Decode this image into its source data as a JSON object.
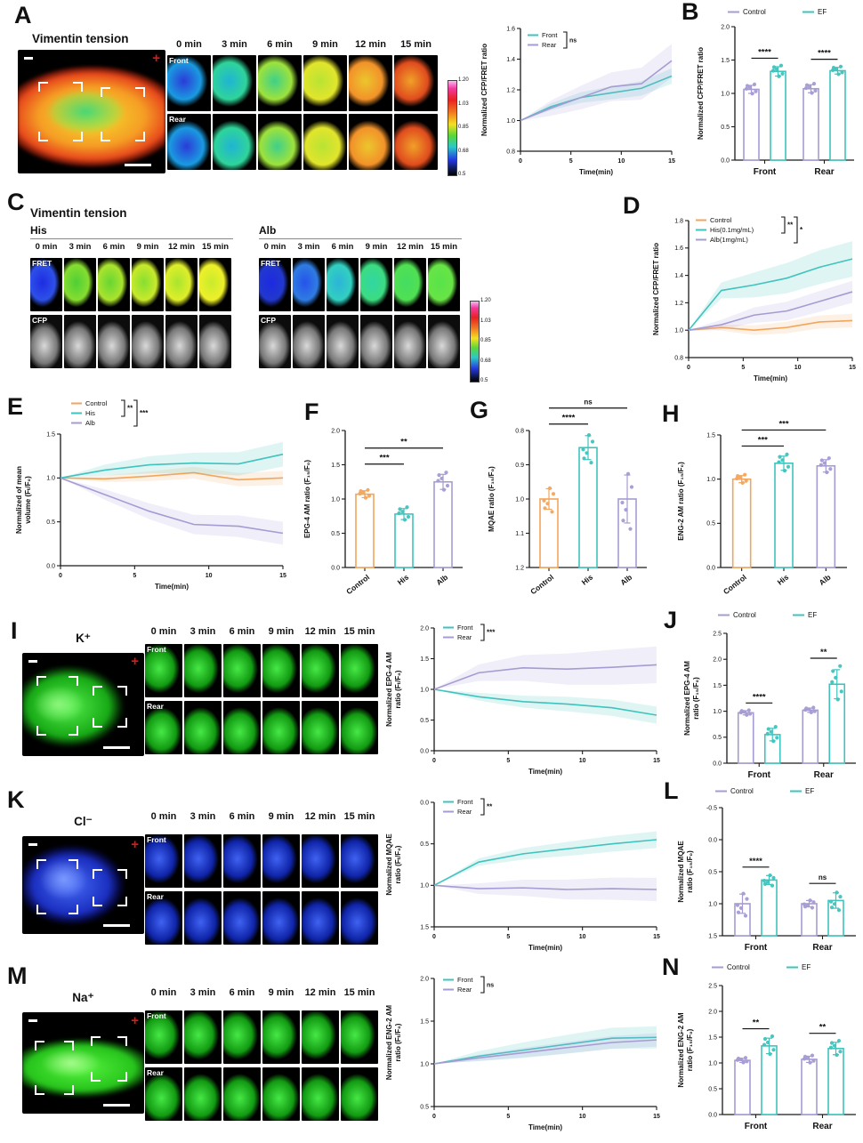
{
  "colors": {
    "teal": "#3fc3bd",
    "purple": "#a69bd3",
    "orange": "#f2a55c",
    "sig": "#111111"
  },
  "time_labels": [
    "0 min",
    "3 min",
    "6 min",
    "9 min",
    "12 min",
    "15 min"
  ],
  "colorbar_ticks": [
    "1.20",
    "1.03",
    "0.85",
    "0.68",
    "0.5"
  ],
  "panels": {
    "A": {
      "letter": "A",
      "title": "Vimentin tension",
      "row_labels": [
        "Front",
        "Rear"
      ]
    },
    "B": {
      "letter": "B"
    },
    "C": {
      "letter": "C",
      "title": "Vimentin tension",
      "sub_left": "His",
      "sub_right": "Alb",
      "row_labels": [
        "FRET",
        "CFP"
      ]
    },
    "D": {
      "letter": "D"
    },
    "E": {
      "letter": "E"
    },
    "F": {
      "letter": "F"
    },
    "G": {
      "letter": "G"
    },
    "H": {
      "letter": "H"
    },
    "I": {
      "letter": "I",
      "title": "K⁺",
      "row_labels": [
        "Front",
        "Rear"
      ]
    },
    "J": {
      "letter": "J"
    },
    "K": {
      "letter": "K",
      "title": "Cl⁻",
      "row_labels": [
        "Front",
        "Rear"
      ]
    },
    "L": {
      "letter": "L"
    },
    "M": {
      "letter": "M",
      "title": "Na⁺",
      "row_labels": [
        "Front",
        "Rear"
      ]
    },
    "N": {
      "letter": "N"
    }
  },
  "chart_data": {
    "A": {
      "type": "line",
      "x": [
        0,
        3,
        6,
        9,
        12,
        15
      ],
      "xticks": [
        0,
        5,
        10,
        15
      ],
      "xlabel": "Time(min)",
      "ylabel": "Normalized CFP/FRET ratio",
      "ylim": [
        0.8,
        1.6
      ],
      "yticks": [
        0.8,
        1.0,
        1.2,
        1.4,
        1.6
      ],
      "series": [
        {
          "name": "Front",
          "color": "teal",
          "values": [
            1.0,
            1.09,
            1.15,
            1.18,
            1.21,
            1.29
          ],
          "band": 0.05
        },
        {
          "name": "Rear",
          "color": "purple",
          "values": [
            1.0,
            1.08,
            1.15,
            1.22,
            1.24,
            1.39
          ],
          "band": 0.11
        }
      ],
      "sig": [
        {
          "rows": [
            0,
            1
          ],
          "label": "ns"
        }
      ]
    },
    "B": {
      "type": "bar",
      "groups": [
        "Front",
        "Rear"
      ],
      "ylabel": "Normalized CFP/FRET ratio",
      "ylim": [
        0,
        2.0
      ],
      "yticks": [
        0,
        0.5,
        1.0,
        1.5,
        2.0
      ],
      "legend": true,
      "series": [
        {
          "name": "Control",
          "color": "purple",
          "values": [
            1.06,
            1.07
          ],
          "errors": [
            0.06,
            0.06
          ]
        },
        {
          "name": "EF",
          "color": "teal",
          "values": [
            1.33,
            1.34
          ],
          "errors": [
            0.07,
            0.05
          ]
        }
      ],
      "sig": [
        {
          "group": 0,
          "label": "****"
        },
        {
          "group": 1,
          "label": "****"
        }
      ]
    },
    "D": {
      "type": "line",
      "x": [
        0,
        3,
        6,
        9,
        12,
        15
      ],
      "xticks": [
        0,
        5,
        10,
        15
      ],
      "xlabel": "Time(min)",
      "ylabel": "Normalized CFP/FRET ratio",
      "ylim": [
        0.8,
        1.8
      ],
      "yticks": [
        0.8,
        1.0,
        1.2,
        1.4,
        1.6,
        1.8
      ],
      "series": [
        {
          "name": "Control",
          "color": "orange",
          "values": [
            1.0,
            1.02,
            1.0,
            1.02,
            1.06,
            1.07
          ],
          "band": 0.05
        },
        {
          "name": "His(0.1mg/mL)",
          "color": "teal",
          "values": [
            1.0,
            1.29,
            1.33,
            1.38,
            1.46,
            1.52
          ],
          "band": 0.13
        },
        {
          "name": "Alb(1mg/mL)",
          "color": "purple",
          "values": [
            1.0,
            1.04,
            1.11,
            1.14,
            1.21,
            1.28
          ],
          "band": 0.08
        }
      ],
      "sig": [
        {
          "rows": [
            0,
            1
          ],
          "label": "**"
        },
        {
          "rows": [
            0,
            2
          ],
          "label": "*"
        }
      ]
    },
    "E": {
      "type": "line",
      "x": [
        0,
        3,
        6,
        9,
        12,
        15
      ],
      "xticks": [
        0,
        5,
        10,
        15
      ],
      "xlabel": "Time(min)",
      "ylabel": "Normalized of mean\nvolume (Fₜ/F₀)",
      "ylim": [
        0,
        1.5
      ],
      "yticks": [
        0,
        0.5,
        1.0,
        1.5
      ],
      "series": [
        {
          "name": "Control",
          "color": "orange",
          "values": [
            1.0,
            0.99,
            1.02,
            1.06,
            0.98,
            1.0
          ],
          "band": 0.08
        },
        {
          "name": "His",
          "color": "teal",
          "values": [
            1.0,
            1.09,
            1.15,
            1.17,
            1.16,
            1.27
          ],
          "band": 0.14
        },
        {
          "name": "Alb",
          "color": "purple",
          "values": [
            1.0,
            0.81,
            0.62,
            0.47,
            0.45,
            0.37
          ],
          "band": 0.13
        }
      ],
      "sig": [
        {
          "rows": [
            0,
            1
          ],
          "label": "**"
        },
        {
          "rows": [
            0,
            2
          ],
          "label": "***"
        }
      ]
    },
    "F": {
      "type": "bar",
      "categories": [
        "Control",
        "His",
        "Alb"
      ],
      "ylabel": "EPG-4 AM ratio (F₁₅/F₀)",
      "ylim": [
        0,
        2.0
      ],
      "yticks": [
        0,
        0.5,
        1.0,
        1.5,
        2.0
      ],
      "values": [
        1.07,
        0.78,
        1.25
      ],
      "errors": [
        0.05,
        0.08,
        0.11
      ],
      "colors": [
        "orange",
        "teal",
        "purple"
      ],
      "sig": [
        {
          "from": 0,
          "to": 1,
          "label": "***"
        },
        {
          "from": 0,
          "to": 2,
          "label": "**"
        }
      ]
    },
    "G": {
      "type": "bar",
      "categories": [
        "Control",
        "His",
        "Alb"
      ],
      "ylabel": "MQAE ratio (F₁₅/F₀)",
      "invert": true,
      "ylim": [
        0.8,
        1.2
      ],
      "yticks": [
        0.8,
        0.9,
        1.0,
        1.1,
        1.2
      ],
      "values": [
        1.0,
        0.85,
        1.0
      ],
      "errors": [
        0.03,
        0.035,
        0.07
      ],
      "colors": [
        "orange",
        "teal",
        "purple"
      ],
      "sig": [
        {
          "from": 0,
          "to": 1,
          "label": "****"
        },
        {
          "from": 0,
          "to": 2,
          "label": "ns"
        }
      ]
    },
    "H": {
      "type": "bar",
      "categories": [
        "Control",
        "His",
        "Alb"
      ],
      "ylabel": "ENG-2 AM ratio (F₁₅/F₀)",
      "ylim": [
        0,
        1.5
      ],
      "yticks": [
        0,
        0.5,
        1.0,
        1.5
      ],
      "values": [
        1.0,
        1.18,
        1.15
      ],
      "errors": [
        0.04,
        0.08,
        0.07
      ],
      "colors": [
        "orange",
        "teal",
        "purple"
      ],
      "sig": [
        {
          "from": 0,
          "to": 1,
          "label": "***"
        },
        {
          "from": 0,
          "to": 2,
          "label": "***"
        }
      ]
    },
    "I": {
      "type": "line",
      "x": [
        0,
        3,
        6,
        9,
        12,
        15
      ],
      "xticks": [
        0,
        5,
        10,
        15
      ],
      "xlabel": "Time(min)",
      "ylabel": "Normalized EPG-4 AM\nratio (Fₜ/F₀)",
      "ylim": [
        0,
        2.0
      ],
      "yticks": [
        0,
        0.5,
        1.0,
        1.5,
        2.0
      ],
      "series": [
        {
          "name": "Front",
          "color": "teal",
          "values": [
            1.0,
            0.88,
            0.8,
            0.76,
            0.7,
            0.58
          ],
          "band": 0.14
        },
        {
          "name": "Rear",
          "color": "purple",
          "values": [
            1.0,
            1.27,
            1.35,
            1.33,
            1.36,
            1.4
          ],
          "band": 0.3
        }
      ],
      "sig": [
        {
          "rows": [
            0,
            1
          ],
          "label": "***"
        }
      ]
    },
    "J": {
      "type": "bar",
      "groups": [
        "Front",
        "Rear"
      ],
      "ylabel": "Normalized EPG-4 AM\nratio (F₁₅/F₀)",
      "ylim": [
        0,
        2.5
      ],
      "yticks": [
        0,
        0.5,
        1.0,
        1.5,
        2.0,
        2.5
      ],
      "legend": true,
      "series": [
        {
          "name": "Control",
          "color": "purple",
          "values": [
            0.97,
            1.02
          ],
          "errors": [
            0.04,
            0.04
          ]
        },
        {
          "name": "EF",
          "color": "teal",
          "values": [
            0.55,
            1.52
          ],
          "errors": [
            0.12,
            0.28
          ]
        }
      ],
      "sig": [
        {
          "group": 0,
          "label": "****"
        },
        {
          "group": 1,
          "label": "**"
        }
      ]
    },
    "K": {
      "type": "line",
      "x": [
        0,
        3,
        6,
        9,
        12,
        15
      ],
      "xticks": [
        0,
        5,
        10,
        15
      ],
      "xlabel": "Time(min)",
      "invert": true,
      "ylabel": "Normalized MQAE\nratio (Fₜ/F₀)",
      "ylim": [
        0,
        1.5
      ],
      "yticks": [
        0,
        0.5,
        1.0,
        1.5
      ],
      "series": [
        {
          "name": "Front",
          "color": "teal",
          "values": [
            1.0,
            0.72,
            0.62,
            0.56,
            0.5,
            0.45
          ],
          "band": 0.1
        },
        {
          "name": "Rear",
          "color": "purple",
          "values": [
            1.0,
            1.04,
            1.03,
            1.05,
            1.04,
            1.05
          ],
          "band": 0.14
        }
      ],
      "sig": [
        {
          "rows": [
            0,
            1
          ],
          "label": "**"
        }
      ]
    },
    "L": {
      "type": "bar",
      "groups": [
        "Front",
        "Rear"
      ],
      "ylabel": "Normalized MQAE\nratio (F₁₅/F₀)",
      "invert": true,
      "ylim": [
        -0.5,
        1.5
      ],
      "yticks": [
        -0.5,
        0,
        0.5,
        1.0,
        1.5
      ],
      "legend": true,
      "series": [
        {
          "name": "Control",
          "color": "purple",
          "values": [
            1.0,
            1.0
          ],
          "errors": [
            0.15,
            0.05
          ]
        },
        {
          "name": "EF",
          "color": "teal",
          "values": [
            0.63,
            0.95
          ],
          "errors": [
            0.07,
            0.12
          ]
        }
      ],
      "sig": [
        {
          "group": 0,
          "label": "****"
        },
        {
          "group": 1,
          "label": "ns"
        }
      ]
    },
    "M": {
      "type": "line",
      "x": [
        0,
        3,
        6,
        9,
        12,
        15
      ],
      "xticks": [
        0,
        5,
        10,
        15
      ],
      "xlabel": "Time(min)",
      "ylabel": "Normalized ENG-2 AM\nratio (Fₜ/F₀)",
      "ylim": [
        0.5,
        2.0
      ],
      "yticks": [
        0.5,
        1.0,
        1.5,
        2.0
      ],
      "series": [
        {
          "name": "Front",
          "color": "teal",
          "values": [
            1.0,
            1.09,
            1.16,
            1.23,
            1.3,
            1.31
          ],
          "band": 0.13
        },
        {
          "name": "Rear",
          "color": "purple",
          "values": [
            1.0,
            1.07,
            1.13,
            1.19,
            1.25,
            1.28
          ],
          "band": 0.08
        }
      ],
      "sig": [
        {
          "rows": [
            0,
            1
          ],
          "label": "ns"
        }
      ]
    },
    "N": {
      "type": "bar",
      "groups": [
        "Front",
        "Rear"
      ],
      "ylabel": "Normalized ENG-2 AM\nratio (F₁₅/F₀)",
      "ylim": [
        0,
        2.5
      ],
      "yticks": [
        0,
        0.5,
        1.0,
        1.5,
        2.0,
        2.5
      ],
      "legend": true,
      "series": [
        {
          "name": "Control",
          "color": "purple",
          "values": [
            1.05,
            1.07
          ],
          "errors": [
            0.04,
            0.06
          ]
        },
        {
          "name": "EF",
          "color": "teal",
          "values": [
            1.33,
            1.28
          ],
          "errors": [
            0.15,
            0.12
          ]
        }
      ],
      "sig": [
        {
          "group": 0,
          "label": "**"
        },
        {
          "group": 1,
          "label": "**"
        }
      ]
    }
  }
}
